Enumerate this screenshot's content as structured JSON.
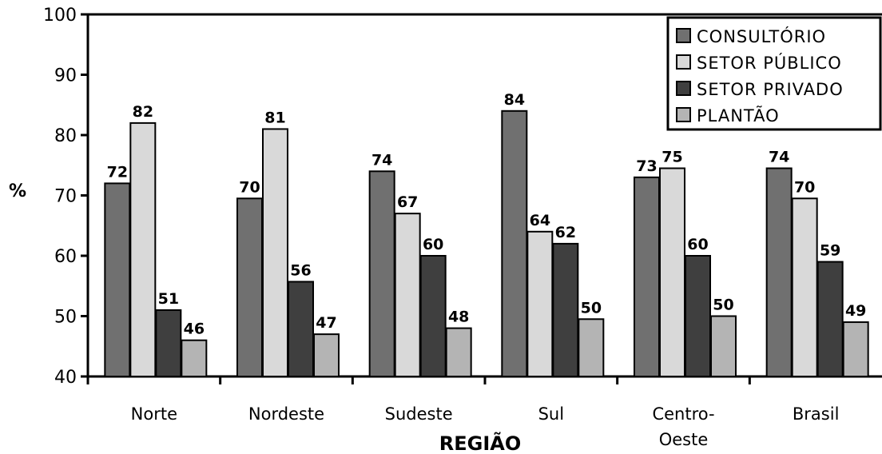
{
  "chart_data": {
    "type": "bar",
    "categories": [
      "Norte",
      "Nordeste",
      "Sudeste",
      "Sul",
      "Centro-Oeste",
      "Brasil"
    ],
    "category_lines": [
      [
        "Norte"
      ],
      [
        "Nordeste"
      ],
      [
        "Sudeste"
      ],
      [
        "Sul"
      ],
      [
        "Centro-",
        "Oeste"
      ],
      [
        "Brasil"
      ]
    ],
    "series": [
      {
        "name": "CONSULTÓRIO",
        "color": "#707070",
        "values": [
          72,
          69.5,
          74,
          84,
          73,
          74.5
        ],
        "labels": [
          "72",
          "70",
          "74",
          "84",
          "73",
          "74"
        ]
      },
      {
        "name": "SETOR PÚBLICO",
        "color": "#d9d9d9",
        "values": [
          82,
          81,
          67,
          64,
          74.5,
          69.5
        ],
        "labels": [
          "82",
          "81",
          "67",
          "64",
          "75",
          "70"
        ]
      },
      {
        "name": "SETOR PRIVADO",
        "color": "#3f3f3f",
        "values": [
          51,
          55.7,
          60,
          62,
          60,
          59
        ],
        "labels": [
          "51",
          "56",
          "60",
          "62",
          "60",
          "59"
        ]
      },
      {
        "name": "PLANTÃO",
        "color": "#b4b4b4",
        "values": [
          46,
          47,
          48,
          49.5,
          50,
          49
        ],
        "labels": [
          "46",
          "47",
          "48",
          "50",
          "50",
          "49"
        ]
      }
    ],
    "xlabel": "REGIÃO",
    "ylabel": "%",
    "ylim": [
      40,
      100
    ],
    "yticks": [
      40,
      50,
      60,
      70,
      80,
      90,
      100
    ],
    "grid": false,
    "legend_position": "top-right"
  }
}
